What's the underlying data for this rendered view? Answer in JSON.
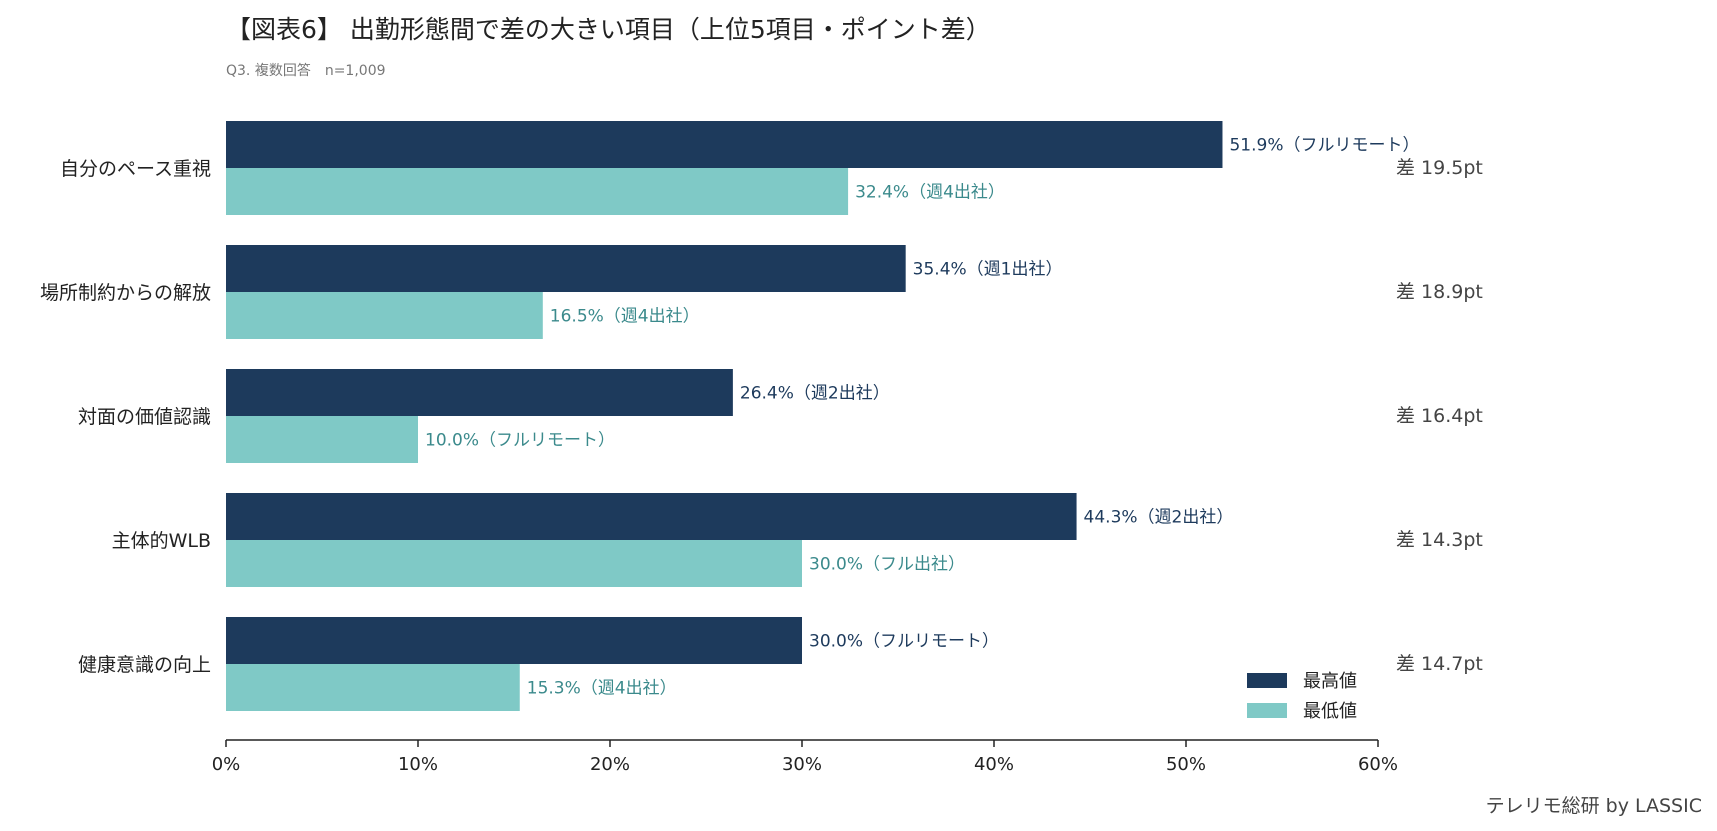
{
  "chart_data": {
    "type": "bar",
    "orientation": "horizontal",
    "title": "【図表6】 出勤形態間で差の大きい項目（上位5項目・ポイント差）",
    "subtitle": "Q3. 複数回答　n=1,009",
    "categories": [
      "自分のペース重視",
      "場所制約からの解放",
      "対面の価値認識",
      "主体的WLB",
      "健康意識の向上"
    ],
    "series": [
      {
        "name": "最高値",
        "color": "#1d3a5c",
        "label_color": "#1d3a5c",
        "values": [
          51.9,
          35.4,
          26.4,
          44.3,
          30.0
        ],
        "groups": [
          "フルリモート",
          "週1出社",
          "週2出社",
          "週2出社",
          "フルリモート"
        ],
        "labels": [
          "51.9%（フルリモート）",
          "35.4%（週1出社）",
          "26.4%（週2出社）",
          "44.3%（週2出社）",
          "30.0%（フルリモート）"
        ]
      },
      {
        "name": "最低値",
        "color": "#7fc9c6",
        "label_color": "#3b8a8c",
        "values": [
          32.4,
          16.5,
          10.0,
          30.0,
          15.3
        ],
        "groups": [
          "週4出社",
          "週4出社",
          "フルリモート",
          "フル出社",
          "週4出社"
        ],
        "labels": [
          "32.4%（週4出社）",
          "16.5%（週4出社）",
          "10.0%（フルリモート）",
          "30.0%（フル出社）",
          "15.3%（週4出社）"
        ]
      }
    ],
    "differences": [
      "差 19.5pt",
      "差 18.9pt",
      "差 16.4pt",
      "差 14.3pt",
      "差 14.7pt"
    ],
    "xlim": [
      0,
      60
    ],
    "xticks": [
      0,
      10,
      20,
      30,
      40,
      50,
      60
    ],
    "xtick_labels": [
      "0%",
      "10%",
      "20%",
      "30%",
      "40%",
      "50%",
      "60%"
    ],
    "xlabel": "",
    "ylabel": "",
    "grid": false,
    "legend_position": "bottom-right"
  },
  "footer": {
    "credit": "テレリモ総研 by LASSIC"
  }
}
